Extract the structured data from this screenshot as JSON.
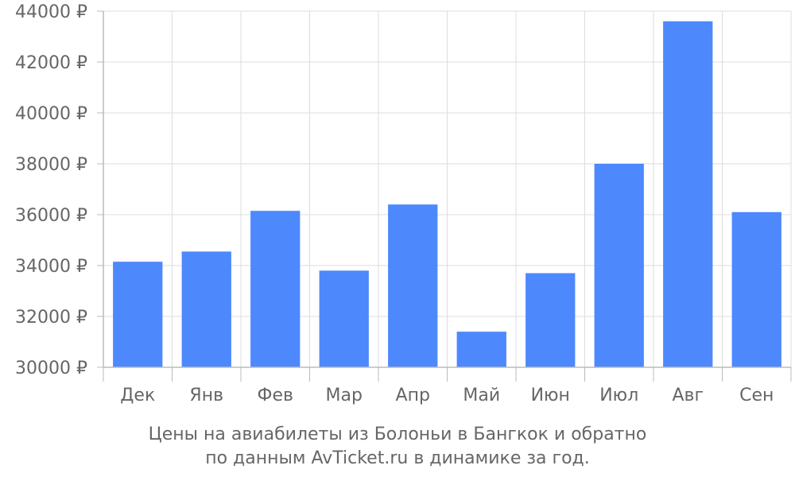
{
  "chart_data": {
    "type": "bar",
    "categories": [
      "Дек",
      "Янв",
      "Фев",
      "Мар",
      "Апр",
      "Май",
      "Июн",
      "Июл",
      "Авг",
      "Сен"
    ],
    "values": [
      34150,
      34550,
      36150,
      33800,
      36400,
      31400,
      33700,
      38000,
      43600,
      36100
    ],
    "ylim": [
      30000,
      44000
    ],
    "yticks": [
      30000,
      32000,
      34000,
      36000,
      38000,
      40000,
      42000,
      44000
    ],
    "y_tick_suffix": " ₽",
    "bar_color": "#4d88fd",
    "grid": true,
    "caption": [
      "Цены на авиабилеты из Болоньи в Бангкок и обратно",
      "по данным AvTicket.ru в динамике за год."
    ]
  }
}
